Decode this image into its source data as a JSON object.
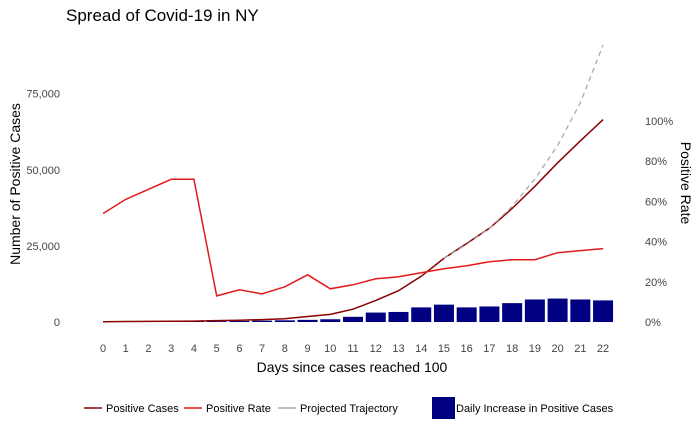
{
  "chart_data": {
    "type": "bar+line",
    "title": "Spread of Covid-19 in NY",
    "xlabel": "Days since cases reached 100",
    "ylabel": "Number of Positive Cases",
    "y2label": "Positive Rate",
    "x": [
      0,
      1,
      2,
      3,
      4,
      5,
      6,
      7,
      8,
      9,
      10,
      11,
      12,
      13,
      14,
      15,
      16,
      17,
      18,
      19,
      20,
      21,
      22
    ],
    "xticks": [
      "0",
      "1",
      "2",
      "3",
      "4",
      "5",
      "6",
      "7",
      "8",
      "9",
      "10",
      "11",
      "12",
      "13",
      "14",
      "15",
      "16",
      "17",
      "18",
      "19",
      "20",
      "21",
      "22"
    ],
    "ylim": [
      0,
      92000
    ],
    "yticks": [
      0,
      25000,
      50000,
      75000
    ],
    "ytick_labels": [
      "0",
      "25,000",
      "50,000",
      "75,000"
    ],
    "y2lim": [
      0,
      1.0
    ],
    "y2ticks": [
      0,
      0.2,
      0.4,
      0.6,
      0.8,
      1.0
    ],
    "y2tick_labels": [
      "0%",
      "20%",
      "40%",
      "60%",
      "80%",
      "100%"
    ],
    "grid": false,
    "legend_position": "bottom",
    "series": [
      {
        "name": "Daily Increase in Positive Cases",
        "kind": "bar",
        "axis": "left",
        "color": "#000080",
        "values": [
          0,
          0,
          100,
          150,
          200,
          250,
          350,
          450,
          550,
          700,
          900,
          1700,
          3100,
          3300,
          4800,
          5700,
          4800,
          5100,
          6200,
          7400,
          7700,
          7400,
          7100
        ]
      },
      {
        "name": "Positive Cases",
        "kind": "line",
        "axis": "left",
        "color": "#8b0000",
        "values": [
          100,
          150,
          200,
          250,
          300,
          450,
          600,
          800,
          1100,
          1800,
          2500,
          4200,
          7100,
          10300,
          15000,
          20900,
          25800,
          30800,
          37300,
          44600,
          52300,
          59500,
          66500
        ]
      },
      {
        "name": "Positive Rate",
        "kind": "line",
        "axis": "right",
        "color": "#e31a1c",
        "values": [
          0.54,
          0.61,
          0.66,
          0.71,
          0.71,
          0.13,
          0.16,
          0.14,
          0.175,
          0.235,
          0.165,
          0.185,
          0.215,
          0.225,
          0.245,
          0.265,
          0.28,
          0.3,
          0.31,
          0.31,
          0.345,
          0.355,
          0.365
        ]
      },
      {
        "name": "Projected Trajectory",
        "kind": "line",
        "axis": "left",
        "color": "#aaaaaa",
        "dashed": true,
        "x": [
          15,
          16,
          17,
          18,
          19,
          20,
          21,
          22
        ],
        "values": [
          20900,
          25500,
          30800,
          38000,
          47000,
          58000,
          72000,
          91000
        ]
      }
    ]
  }
}
